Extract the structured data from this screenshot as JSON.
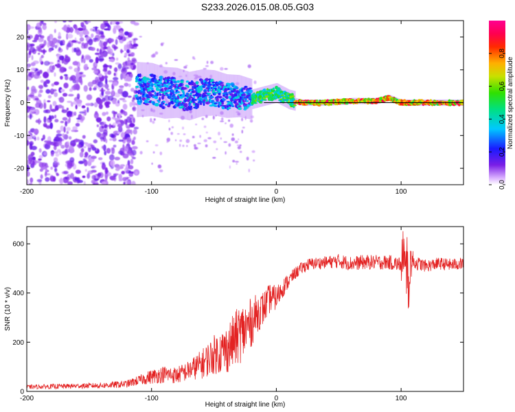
{
  "title": "S233.2026.015.08.05.G03",
  "colors": {
    "snr_line": "#e32222",
    "track_line": "#000000",
    "axes": "#000000"
  },
  "chart_data": [
    {
      "type": "heatmap",
      "name": "spectrogram",
      "xlabel": "Height of straight line (km)",
      "ylabel": "Frequency (Hz)",
      "xlim": [
        -200,
        150
      ],
      "ylim": [
        -25,
        25
      ],
      "x_ticks": [
        -200,
        -100,
        0,
        100
      ],
      "x_tick_labels": [
        "-200",
        "-100",
        "0",
        "100"
      ],
      "y_ticks": [
        -20,
        -10,
        0,
        10,
        20
      ],
      "y_tick_labels": [
        "-20",
        "-10",
        "0",
        "10",
        "20"
      ],
      "colorbar": {
        "label": "Normalized spectral amplitude",
        "range": [
          0,
          1
        ],
        "ticks": [
          0.0,
          0.2,
          0.4,
          0.6,
          0.8
        ],
        "tick_labels": [
          "0.0",
          "0.2",
          "0.4",
          "0.6",
          "0.8"
        ],
        "colormap": "rainbow (violet-blue-cyan-green-yellow-red-magenta)"
      },
      "ridge_line": {
        "x": [
          -110,
          -100,
          -90,
          -80,
          -70,
          -60,
          -50,
          -40,
          -30,
          -20,
          -10,
          0,
          10,
          20,
          40,
          60,
          80,
          90,
          100,
          120,
          150
        ],
        "frequency_hz": [
          4,
          4,
          3,
          3,
          2,
          3,
          3,
          2,
          2,
          1,
          2,
          3,
          1,
          0,
          0,
          0.5,
          0.5,
          1.5,
          0,
          0,
          0
        ]
      },
      "track_line": {
        "x": [
          -10,
          150
        ],
        "frequency_hz": [
          0,
          0
        ]
      }
    },
    {
      "type": "line",
      "name": "snr",
      "xlabel": "Height of straight line (km)",
      "ylabel": "SNR (10 * v/v)",
      "xlim": [
        -200,
        150
      ],
      "ylim": [
        0,
        670
      ],
      "x_ticks": [
        -200,
        -100,
        0,
        100
      ],
      "x_tick_labels": [
        "-200",
        "-100",
        "0",
        "100"
      ],
      "y_ticks": [
        0,
        200,
        400,
        600
      ],
      "y_tick_labels": [
        "0",
        "200",
        "400",
        "600"
      ],
      "series": [
        {
          "name": "SNR",
          "x": [
            -200,
            -180,
            -160,
            -140,
            -120,
            -110,
            -100,
            -90,
            -80,
            -70,
            -60,
            -50,
            -40,
            -35,
            -30,
            -25,
            -20,
            -15,
            -10,
            -5,
            0,
            5,
            10,
            15,
            20,
            25,
            30,
            40,
            50,
            60,
            70,
            80,
            90,
            100,
            104,
            106,
            108,
            110,
            120,
            130,
            140,
            150
          ],
          "mean": [
            18,
            20,
            22,
            24,
            30,
            45,
            60,
            70,
            65,
            85,
            110,
            150,
            170,
            200,
            230,
            250,
            280,
            320,
            340,
            380,
            380,
            420,
            450,
            480,
            500,
            515,
            520,
            525,
            530,
            520,
            525,
            525,
            525,
            515,
            560,
            420,
            540,
            525,
            510,
            520,
            515,
            520
          ],
          "noise": [
            8,
            10,
            10,
            12,
            15,
            20,
            30,
            35,
            35,
            40,
            60,
            80,
            100,
            110,
            120,
            120,
            100,
            80,
            70,
            60,
            50,
            40,
            30,
            25,
            25,
            25,
            25,
            25,
            30,
            30,
            30,
            30,
            30,
            30,
            80,
            100,
            80,
            30,
            25,
            25,
            25,
            25
          ]
        }
      ]
    }
  ]
}
